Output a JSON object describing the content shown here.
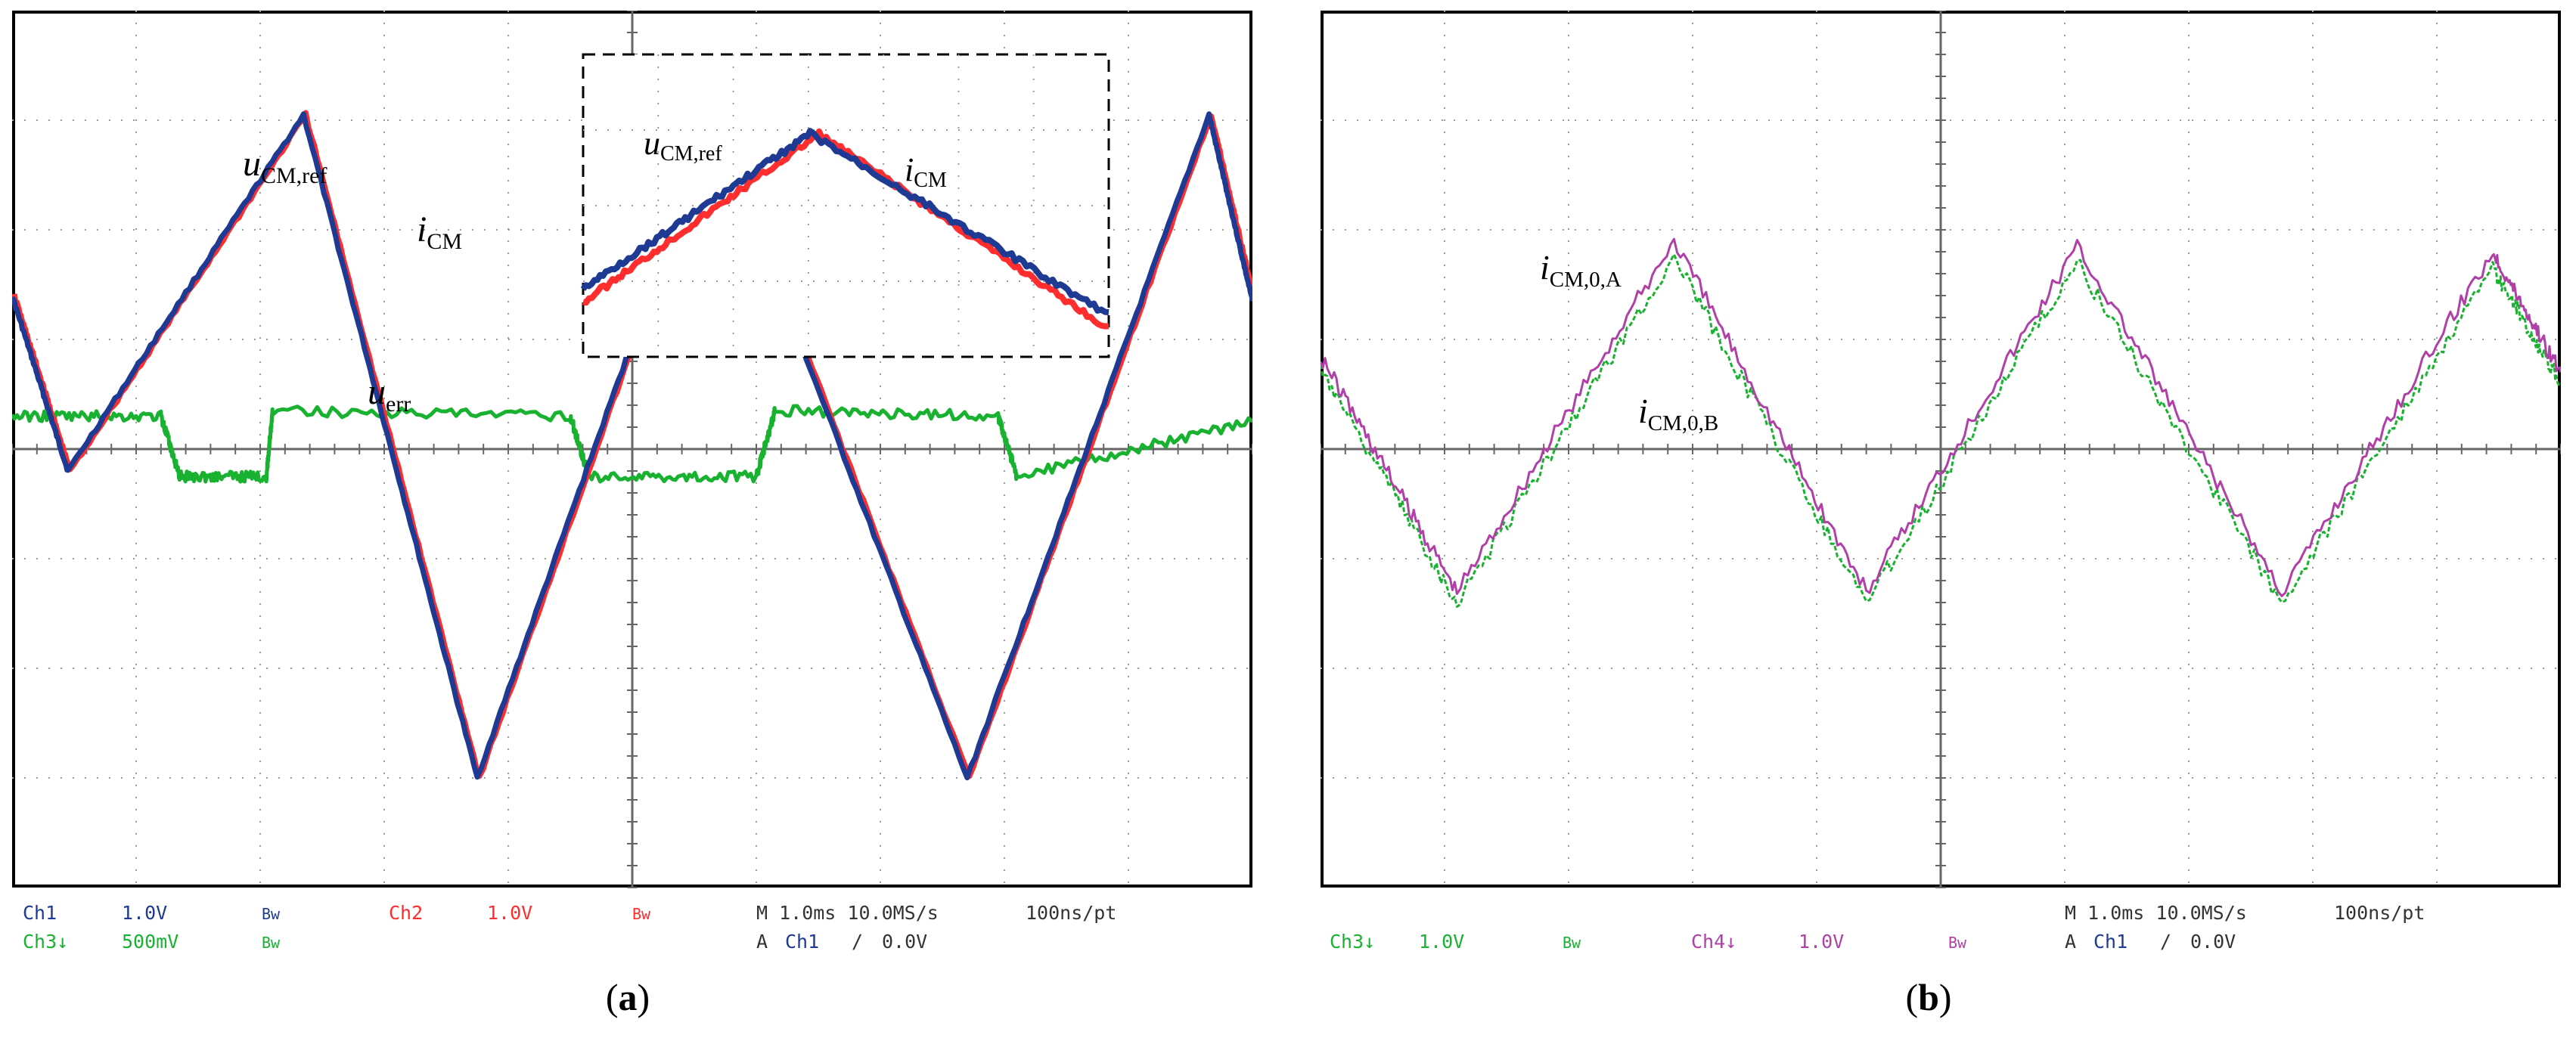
{
  "colors": {
    "blue": "#1f3a93",
    "red": "#ff2d2d",
    "green": "#19b230",
    "magenta": "#b040a8",
    "grid": "#9a9a9a"
  },
  "chart_data": [
    {
      "type": "line",
      "panel_caption_letter": "a",
      "xlim": [
        0,
        10
      ],
      "ylim": [
        -4,
        4
      ],
      "series": [
        {
          "name": "u_CM,ref",
          "color": "blue",
          "x": [
            0,
            0.45,
            2.35,
            3.75,
            5.65,
            7.7,
            9.65,
            10
          ],
          "y": [
            1.4,
            -0.2,
            3.05,
            -3.0,
            3.05,
            -3.0,
            3.05,
            1.35
          ]
        },
        {
          "name": "i_CM",
          "color": "red",
          "x": [
            0,
            0.45,
            2.35,
            3.75,
            5.65,
            7.7,
            9.65,
            10
          ],
          "y": [
            1.4,
            -0.2,
            3.05,
            -3.0,
            3.05,
            -3.0,
            3.05,
            1.35
          ]
        },
        {
          "name": "u_err",
          "color": "green",
          "x": [
            0,
            1.2,
            1.35,
            2.05,
            2.1,
            4.5,
            4.65,
            6.0,
            6.15,
            7.95,
            8.1,
            10
          ],
          "y": [
            0.3,
            0.3,
            -0.25,
            -0.25,
            0.35,
            0.3,
            -0.25,
            -0.25,
            0.35,
            0.3,
            -0.25,
            0.25
          ]
        }
      ],
      "inset": {
        "label_blue": "u_CM,ref",
        "label_red": "i_CM"
      },
      "labels": {
        "u": "u",
        "u_sub": "CM,ref",
        "i": "i",
        "i_sub": "CM",
        "err": "u",
        "err_sub": "err"
      },
      "readout": {
        "ch1": "Ch1",
        "ch1_scale": "1.0V",
        "bw1": "Bw",
        "ch2": "Ch2",
        "ch2_scale": "1.0V",
        "bw2": "Bw",
        "ch3": "Ch3↓",
        "ch3_scale": "500mV",
        "bw3": "Bw",
        "timebase": "M 1.0ms 10.0MS/s",
        "resolution": "100ns/pt",
        "trigger_a": "A",
        "trigger_ch": "Ch1",
        "trigger_slope": "∕",
        "trigger_level": "0.0V"
      }
    },
    {
      "type": "line",
      "panel_caption_letter": "b",
      "xlim": [
        0,
        10
      ],
      "ylim": [
        -4,
        4
      ],
      "series": [
        {
          "name": "i_CM,0,A",
          "color": "magenta",
          "x": [
            0,
            1.1,
            2.85,
            4.4,
            6.1,
            7.75,
            9.45,
            10
          ],
          "y": [
            0.85,
            -1.3,
            1.9,
            -1.3,
            1.85,
            -1.3,
            1.8,
            0.7
          ]
        },
        {
          "name": "i_CM,0,B",
          "color": "green",
          "x": [
            0,
            1.1,
            2.85,
            4.4,
            6.1,
            7.75,
            9.45,
            10
          ],
          "y": [
            0.75,
            -1.4,
            1.75,
            -1.4,
            1.7,
            -1.4,
            1.65,
            0.6
          ]
        }
      ],
      "labels": {
        "iA": "i",
        "iA_sub": "CM,0,A",
        "iB": "i",
        "iB_sub": "CM,0,B"
      },
      "readout": {
        "ch3": "Ch3↓",
        "ch3_scale": "1.0V",
        "bw3": "Bw",
        "ch4": "Ch4↓",
        "ch4_scale": "1.0V",
        "bw4": "Bw",
        "timebase": "M 1.0ms 10.0MS/s",
        "resolution": "100ns/pt",
        "trigger_a": "A",
        "trigger_ch": "Ch1",
        "trigger_slope": "∕",
        "trigger_level": "0.0V"
      }
    }
  ],
  "captions": {
    "a_open": "(",
    "a": "a",
    "a_close": ")",
    "b_open": "(",
    "b": "b",
    "b_close": ")"
  }
}
